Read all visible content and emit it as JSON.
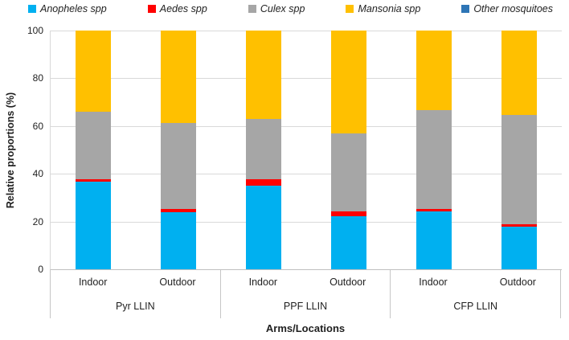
{
  "chart_data": {
    "type": "bar",
    "stacked": true,
    "title": "",
    "ylabel": "Relative proportions (%)",
    "xlabel": "Arms/Locations",
    "ylim": [
      0,
      100
    ],
    "yticks": [
      0,
      20,
      40,
      60,
      80,
      100
    ],
    "grid": "horizontal",
    "legend_position": "top",
    "groups": [
      "Pyr LLIN",
      "PPF LLIN",
      "CFP LLIN"
    ],
    "locations": [
      "Indoor",
      "Outdoor"
    ],
    "categories": [
      "Pyr LLIN / Indoor",
      "Pyr LLIN / Outdoor",
      "PPF LLIN / Indoor",
      "PPF LLIN / Outdoor",
      "CFP LLIN / Indoor",
      "CFP LLIN / Outdoor"
    ],
    "series": [
      {
        "name": "Anopheles spp",
        "color": "#00B0F0",
        "values": [
          36.7,
          24.0,
          35.0,
          22.1,
          24.4,
          17.9
        ]
      },
      {
        "name": "Aedes spp",
        "color": "#FF0000",
        "values": [
          1.0,
          1.1,
          2.6,
          2.2,
          0.8,
          0.8
        ]
      },
      {
        "name": "Culex spp",
        "color": "#A6A6A6",
        "values": [
          28.3,
          36.2,
          25.4,
          32.6,
          41.5,
          45.9
        ]
      },
      {
        "name": "Mansonia spp",
        "color": "#FFC000",
        "values": [
          34.0,
          38.7,
          37.0,
          43.1,
          33.3,
          35.4
        ]
      },
      {
        "name": "Other mosquitoes",
        "color": "#2E75B6",
        "values": [
          0,
          0,
          0,
          0,
          0,
          0
        ]
      }
    ],
    "axis_colors": {
      "gridline": "#d9d9d9",
      "axis_line": "#bfbfbf",
      "separator": "#c6c6c6"
    }
  }
}
